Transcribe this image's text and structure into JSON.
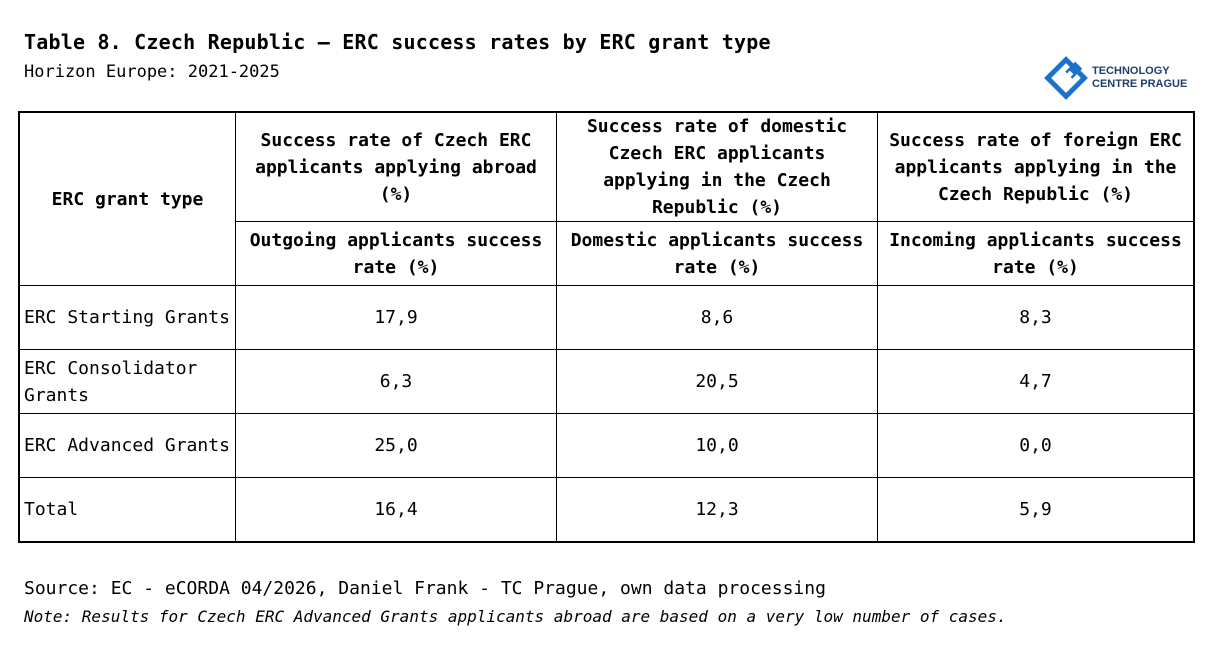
{
  "title": "Table 8. Czech Republic – ERC success rates by ERC grant type",
  "subtitle": "Horizon Europe: 2021-2025",
  "logo": {
    "line1": "TECHNOLOGY",
    "line2": "CENTRE PRAGUE",
    "color": "#1a73c8"
  },
  "table": {
    "row_header_label": "ERC grant type",
    "columns": [
      {
        "header": "Success rate of Czech ERC applicants applying abroad (%)",
        "subheader": "Outgoing applicants success rate (%)"
      },
      {
        "header": "Success rate of domestic Czech ERC applicants applying in the Czech Republic (%)",
        "subheader": "Domestic applicants success rate (%)"
      },
      {
        "header": "Success rate of foreign ERC applicants applying in the Czech Republic (%)",
        "subheader": "Incoming applicants success rate (%)"
      }
    ],
    "rows": [
      {
        "label": "ERC Starting Grants",
        "values": [
          "17,9",
          "8,6",
          "8,3"
        ]
      },
      {
        "label": "ERC Consolidator Grants",
        "values": [
          "6,3",
          "20,5",
          "4,7"
        ]
      },
      {
        "label": "ERC Advanced Grants",
        "values": [
          "25,0",
          "10,0",
          "0,0"
        ]
      }
    ],
    "total": {
      "label": "Total",
      "values": [
        "16,4",
        "12,3",
        "5,9"
      ]
    }
  },
  "source": "Source: EC - eCORDA 04/2026, Daniel Frank - TC Prague, own data processing",
  "note": "Note: Results for Czech ERC Advanced Grants applicants abroad are based on a very low number of cases."
}
